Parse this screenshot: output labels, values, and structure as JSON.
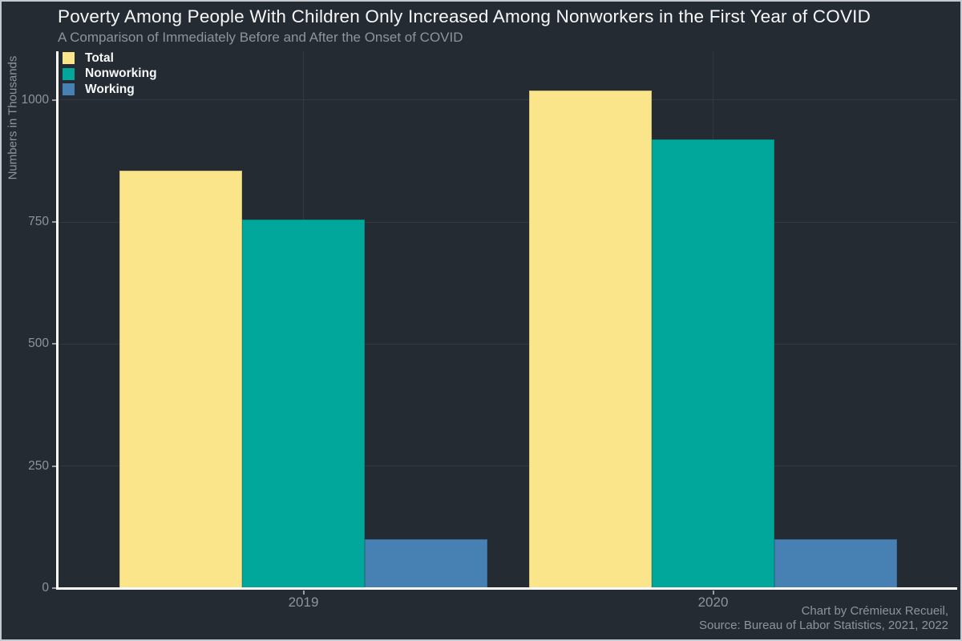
{
  "header": {
    "title": "Poverty Among People With Children Only Increased Among Nonworkers in the First Year of COVID",
    "subtitle": "A Comparison of Immediately Before and After the Onset of COVID"
  },
  "caption": {
    "line1": "Chart by Crémieux Recueil,",
    "line2": "Source: Bureau of Labor Statistics, 2021, 2022"
  },
  "chart_data": {
    "type": "bar",
    "title": "Poverty Among People With Children Only Increased Among Nonworkers in the First Year of COVID",
    "subtitle": "A Comparison of Immediately Before and After the Onset of COVID",
    "xlabel": "",
    "ylabel": "Numbers in Thousands",
    "categories": [
      "2019",
      "2020"
    ],
    "series": [
      {
        "name": "Total",
        "color": "#FBE58B",
        "values": [
          855,
          1020
        ]
      },
      {
        "name": "Nonworking",
        "color": "#00A79A",
        "values": [
          755,
          920
        ]
      },
      {
        "name": "Working",
        "color": "#4781B4",
        "values": [
          100,
          100
        ]
      }
    ],
    "yticks": [
      0,
      250,
      500,
      750,
      1000
    ],
    "ylim": [
      0,
      1100
    ],
    "grid": true,
    "legend_position": "top-left"
  },
  "colors": {
    "background": "#252B33",
    "gridline": "#333A44",
    "axis_line": "#FFFFFF",
    "title_text": "#F6F7F8",
    "muted_text": "#8E949D"
  }
}
